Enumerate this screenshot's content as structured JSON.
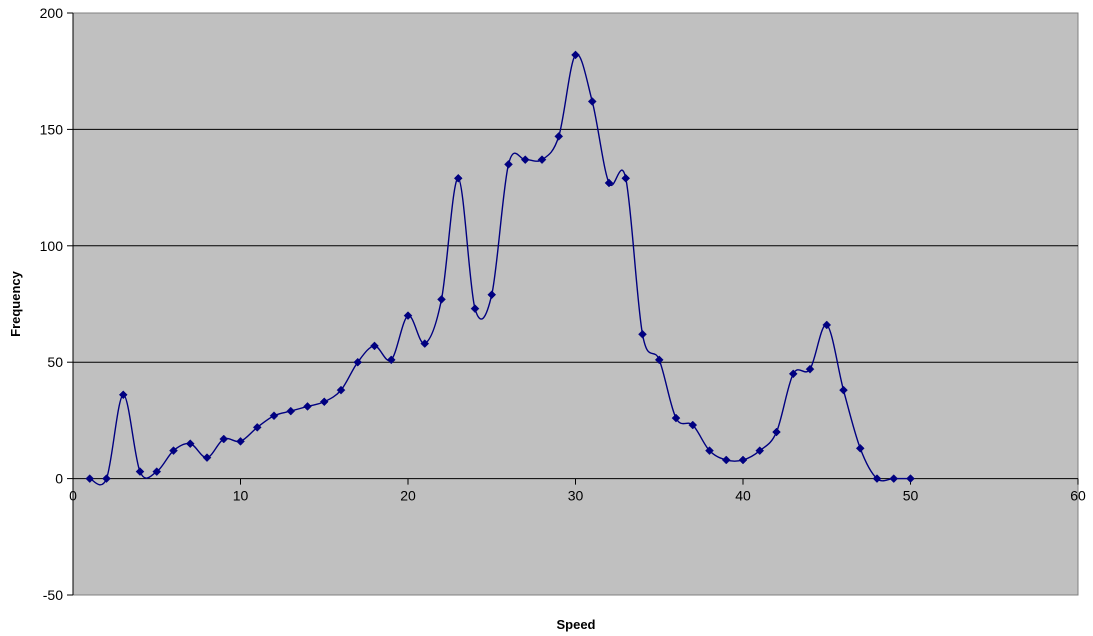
{
  "chart_data": {
    "type": "scatter",
    "title": "",
    "xlabel": "Speed",
    "ylabel": "Frequency",
    "xlim": [
      0,
      60
    ],
    "ylim": [
      -50,
      200
    ],
    "x_ticks": [
      0,
      10,
      20,
      30,
      40,
      50,
      60
    ],
    "y_ticks": [
      -50,
      0,
      50,
      100,
      150,
      200
    ],
    "x_tick_labels": [
      "0",
      "10",
      "20",
      "30",
      "40",
      "50",
      "60"
    ],
    "y_tick_labels": [
      "-50",
      "0",
      "50",
      "100",
      "150",
      "200"
    ],
    "grid": "horizontal",
    "smoothed_line": true,
    "legend": "none",
    "colors": {
      "plot_background": "#c0c0c0",
      "series": "#000080",
      "gridline": "#000000"
    },
    "series": [
      {
        "marker": "diamond",
        "x": [
          1,
          2,
          3,
          4,
          5,
          6,
          7,
          8,
          9,
          10,
          11,
          12,
          13,
          14,
          15,
          16,
          17,
          18,
          19,
          20,
          21,
          22,
          23,
          24,
          25,
          26,
          27,
          28,
          29,
          30,
          31,
          32,
          33,
          34,
          35,
          36,
          37,
          38,
          39,
          40,
          41,
          42,
          43,
          44,
          45,
          46,
          47,
          48,
          49,
          50
        ],
        "y": [
          0,
          0,
          36,
          3,
          3,
          12,
          15,
          9,
          17,
          16,
          22,
          27,
          29,
          31,
          33,
          38,
          50,
          57,
          51,
          70,
          58,
          77,
          129,
          73,
          79,
          135,
          137,
          137,
          147,
          182,
          162,
          127,
          129,
          62,
          51,
          26,
          23,
          12,
          8,
          8,
          12,
          20,
          45,
          47,
          66,
          38,
          13,
          0,
          0,
          0
        ]
      }
    ]
  }
}
